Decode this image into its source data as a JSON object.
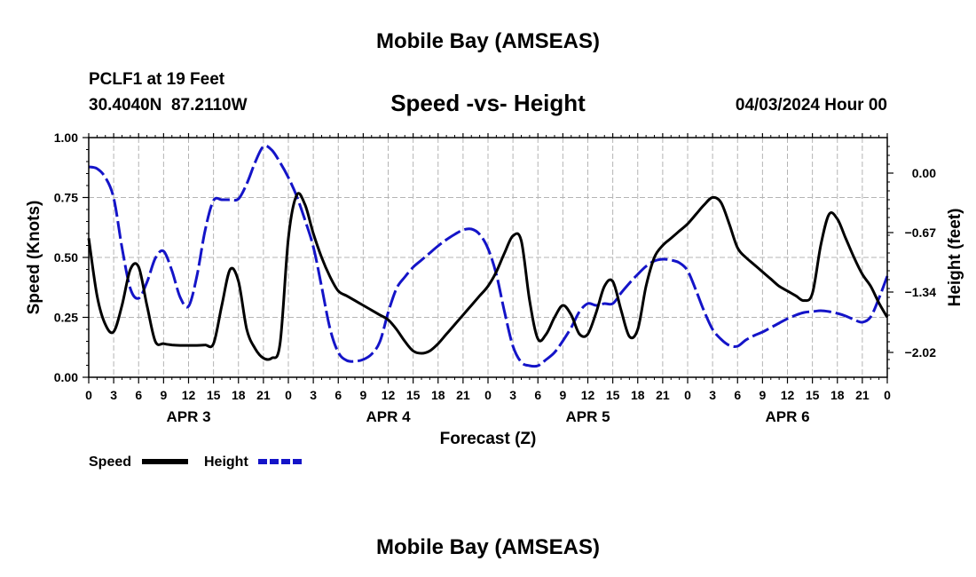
{
  "title": "Mobile Bay (AMSEAS)",
  "footer_title": "Mobile Bay (AMSEAS)",
  "station": {
    "name_line": "PCLF1 at 19 Feet",
    "coords": "30.4040N  87.2110W"
  },
  "timestamp": "04/03/2024 Hour 00",
  "chart_data": {
    "type": "line",
    "title": "Speed -vs- Height",
    "xlabel": "Forecast (Z)",
    "ylabel_left": "Speed (Knots)",
    "ylabel_right": "Height (feet)",
    "x_range": [
      0,
      96
    ],
    "y_left_range": [
      0,
      1.0
    ],
    "y_right_range": [
      -2.3,
      0.4
    ],
    "x_tick_step": 3,
    "x_tick_labels": [
      "0",
      "3",
      "6",
      "9",
      "12",
      "15",
      "18",
      "21",
      "0",
      "3",
      "6",
      "9",
      "12",
      "15",
      "18",
      "21",
      "0",
      "3",
      "6",
      "9",
      "12",
      "15",
      "18",
      "21",
      "0",
      "3",
      "6",
      "9",
      "12",
      "15",
      "18",
      "21",
      "0"
    ],
    "day_labels": [
      "APR 3",
      "APR 4",
      "APR 5",
      "APR 6"
    ],
    "y_left_ticks": [
      0.0,
      0.25,
      0.5,
      0.75,
      1.0
    ],
    "y_left_tick_labels": [
      "0.00",
      "0.25",
      "0.50",
      "0.75",
      "1.00"
    ],
    "y_right_ticks": [
      0.0,
      -0.67,
      -1.34,
      -2.02
    ],
    "y_right_tick_labels": [
      "0.00",
      "−0.67",
      "−1.34",
      "−2.02"
    ],
    "grid": true,
    "legend_position": "bottom-left",
    "series": [
      {
        "name": "Speed",
        "axis": "left",
        "color": "#000000",
        "dash": "solid",
        "x": [
          0,
          1,
          2,
          3,
          4,
          5,
          6,
          7,
          8,
          9,
          10,
          11,
          12,
          13,
          14,
          15,
          16,
          17,
          18,
          19,
          20,
          21,
          22,
          23,
          24,
          25,
          26,
          27,
          28,
          29,
          30,
          31,
          32,
          33,
          34,
          35,
          36,
          37,
          38,
          39,
          40,
          41,
          42,
          43,
          44,
          45,
          46,
          47,
          48,
          49,
          50,
          51,
          52,
          53,
          54,
          55,
          56,
          57,
          58,
          59,
          60,
          61,
          62,
          63,
          64,
          65,
          66,
          67,
          68,
          69,
          70,
          71,
          72,
          73,
          74,
          75,
          76,
          77,
          78,
          79,
          80,
          81,
          82,
          83,
          84,
          85,
          86,
          87,
          88,
          89,
          90,
          91,
          92,
          93,
          94,
          95,
          96
        ],
        "values": [
          0.58,
          0.34,
          0.22,
          0.19,
          0.3,
          0.45,
          0.46,
          0.3,
          0.15,
          0.14,
          0.135,
          0.133,
          0.133,
          0.133,
          0.135,
          0.14,
          0.3,
          0.45,
          0.4,
          0.2,
          0.12,
          0.08,
          0.08,
          0.14,
          0.58,
          0.76,
          0.72,
          0.6,
          0.5,
          0.42,
          0.36,
          0.34,
          0.32,
          0.3,
          0.28,
          0.26,
          0.24,
          0.2,
          0.15,
          0.11,
          0.1,
          0.11,
          0.14,
          0.18,
          0.22,
          0.26,
          0.3,
          0.34,
          0.38,
          0.44,
          0.52,
          0.59,
          0.57,
          0.32,
          0.16,
          0.18,
          0.25,
          0.3,
          0.26,
          0.18,
          0.18,
          0.27,
          0.38,
          0.4,
          0.28,
          0.17,
          0.2,
          0.38,
          0.5,
          0.55,
          0.58,
          0.61,
          0.64,
          0.68,
          0.72,
          0.75,
          0.73,
          0.64,
          0.54,
          0.5,
          0.47,
          0.44,
          0.41,
          0.38,
          0.36,
          0.34,
          0.32,
          0.35,
          0.55,
          0.68,
          0.66,
          0.58,
          0.5,
          0.43,
          0.38,
          0.31,
          0.25
        ]
      },
      {
        "name": "Height",
        "axis": "right",
        "color": "#1414c8",
        "dash": "dashed",
        "x": [
          0,
          1,
          2,
          3,
          4,
          5,
          6,
          7,
          8,
          9,
          10,
          11,
          12,
          13,
          14,
          15,
          16,
          17,
          18,
          19,
          20,
          21,
          22,
          23,
          24,
          25,
          26,
          27,
          28,
          29,
          30,
          31,
          32,
          33,
          34,
          35,
          36,
          37,
          38,
          39,
          40,
          41,
          42,
          43,
          44,
          45,
          46,
          47,
          48,
          49,
          50,
          51,
          52,
          53,
          54,
          55,
          56,
          57,
          58,
          59,
          60,
          61,
          62,
          63,
          64,
          65,
          66,
          67,
          68,
          69,
          70,
          71,
          72,
          73,
          74,
          75,
          76,
          77,
          78,
          79,
          80,
          81,
          82,
          83,
          84,
          85,
          86,
          87,
          88,
          89,
          90,
          91,
          92,
          93,
          94,
          95,
          96
        ],
        "values": [
          0.07,
          0.05,
          -0.05,
          -0.28,
          -0.84,
          -1.3,
          -1.41,
          -1.23,
          -0.96,
          -0.88,
          -1.1,
          -1.4,
          -1.5,
          -1.16,
          -0.64,
          -0.31,
          -0.3,
          -0.3,
          -0.29,
          -0.12,
          0.12,
          0.3,
          0.26,
          0.12,
          -0.05,
          -0.26,
          -0.53,
          -0.83,
          -1.28,
          -1.75,
          -2.02,
          -2.11,
          -2.12,
          -2.1,
          -2.04,
          -1.9,
          -1.57,
          -1.3,
          -1.17,
          -1.06,
          -0.98,
          -0.9,
          -0.82,
          -0.75,
          -0.69,
          -0.64,
          -0.63,
          -0.69,
          -0.85,
          -1.14,
          -1.57,
          -1.95,
          -2.13,
          -2.17,
          -2.17,
          -2.1,
          -2.02,
          -1.89,
          -1.74,
          -1.56,
          -1.47,
          -1.49,
          -1.47,
          -1.47,
          -1.35,
          -1.24,
          -1.14,
          -1.05,
          -0.99,
          -0.97,
          -0.98,
          -1.01,
          -1.1,
          -1.32,
          -1.56,
          -1.76,
          -1.87,
          -1.94,
          -1.95,
          -1.88,
          -1.83,
          -1.79,
          -1.74,
          -1.69,
          -1.64,
          -1.6,
          -1.57,
          -1.56,
          -1.55,
          -1.56,
          -1.58,
          -1.61,
          -1.65,
          -1.68,
          -1.62,
          -1.41,
          -1.16
        ]
      }
    ]
  }
}
